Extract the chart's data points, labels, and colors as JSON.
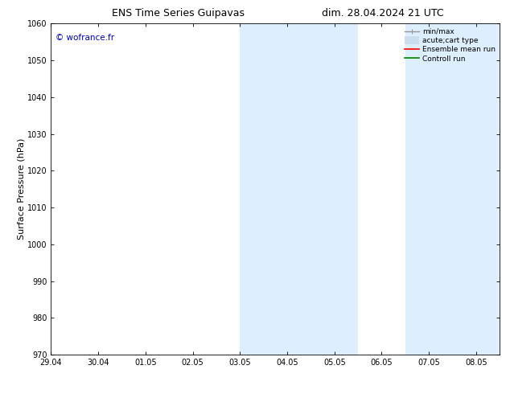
{
  "title_left": "ENS Time Series Guipavas",
  "title_right": "dim. 28.04.2024 21 UTC",
  "ylabel": "Surface Pressure (hPa)",
  "ylim": [
    970,
    1060
  ],
  "yticks": [
    970,
    980,
    990,
    1000,
    1010,
    1020,
    1030,
    1040,
    1050,
    1060
  ],
  "xlim_start": 0,
  "xlim_end": 9.5,
  "xtick_labels": [
    "29.04",
    "30.04",
    "01.05",
    "02.05",
    "03.05",
    "04.05",
    "05.05",
    "06.05",
    "07.05",
    "08.05"
  ],
  "xtick_positions": [
    0,
    1,
    2,
    3,
    4,
    5,
    6,
    7,
    8,
    9
  ],
  "watermark": "© wofrance.fr",
  "watermark_color": "#0000cc",
  "shaded_regions": [
    {
      "xstart": 4.0,
      "xend": 5.5,
      "color": "#ddeeff"
    },
    {
      "xstart": 5.5,
      "xend": 6.5,
      "color": "#ddeeff"
    },
    {
      "xstart": 7.5,
      "xend": 9.5,
      "color": "#ddeeff"
    }
  ],
  "legend_entries": [
    {
      "label": "min/max",
      "color": "#999999",
      "lw": 1.0,
      "style": "line_with_caps"
    },
    {
      "label": "acute;cart type",
      "color": "#ccddef",
      "lw": 7,
      "style": "thick_line"
    },
    {
      "label": "Ensemble mean run",
      "color": "red",
      "lw": 1.2,
      "style": "line"
    },
    {
      "label": "Controll run",
      "color": "green",
      "lw": 1.2,
      "style": "line"
    }
  ],
  "bg_color": "#ffffff",
  "title_fontsize": 9,
  "tick_fontsize": 7,
  "ylabel_fontsize": 8
}
